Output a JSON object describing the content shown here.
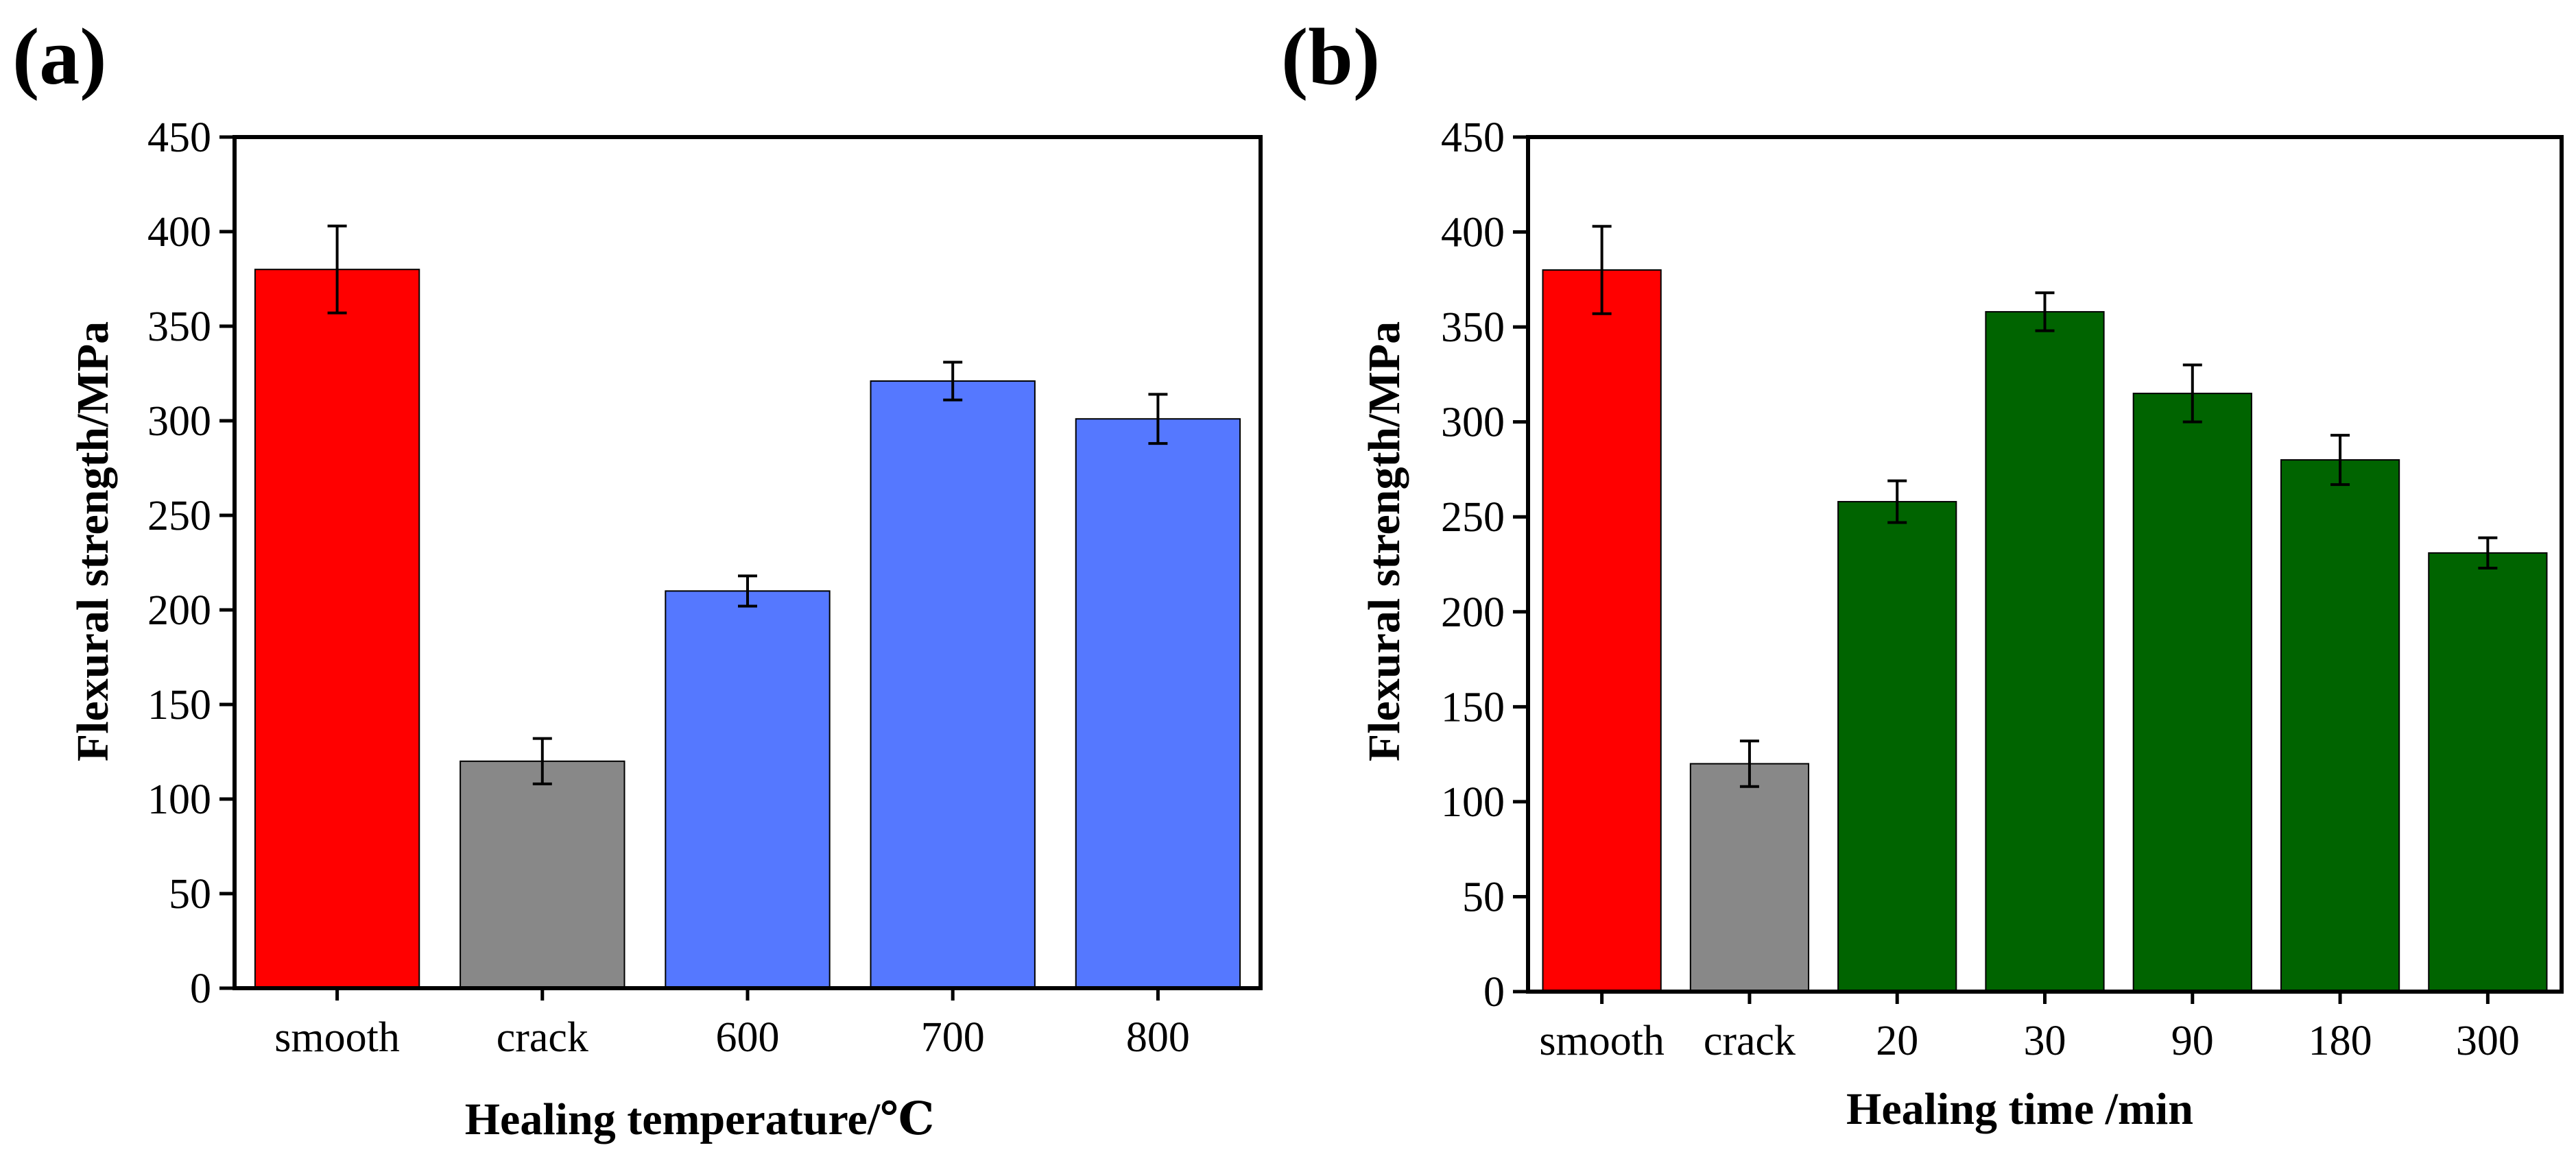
{
  "chart_data": [
    {
      "type": "bar",
      "panel_label": "(a)",
      "categories": [
        "smooth",
        "crack",
        "600",
        "700",
        "800"
      ],
      "values": [
        380,
        120,
        210,
        321,
        301
      ],
      "errors": [
        23,
        12,
        8,
        10,
        13
      ],
      "colors": [
        "#ff0000",
        "#888888",
        "#5578ff",
        "#5578ff",
        "#5578ff"
      ],
      "xlabel": "Healing temperature/℃",
      "ylabel": "Flexural strength/MPa",
      "ylim": [
        0,
        450
      ],
      "yticks": [
        "0",
        "50",
        "100",
        "150",
        "200",
        "250",
        "300",
        "350",
        "400",
        "450"
      ],
      "grid": false
    },
    {
      "type": "bar",
      "panel_label": "(b)",
      "categories": [
        "smooth",
        "crack",
        "20",
        "30",
        "90",
        "180",
        "300"
      ],
      "values": [
        380,
        120,
        258,
        358,
        315,
        280,
        231
      ],
      "errors": [
        23,
        12,
        11,
        10,
        15,
        13,
        8
      ],
      "colors": [
        "#ff0000",
        "#888888",
        "#006400",
        "#006400",
        "#006400",
        "#006400",
        "#006400"
      ],
      "xlabel": "Healing time /min",
      "ylabel": "Flexural strength/MPa",
      "ylim": [
        0,
        450
      ],
      "yticks": [
        "0",
        "50",
        "100",
        "150",
        "200",
        "250",
        "300",
        "350",
        "400",
        "450"
      ],
      "grid": false
    }
  ]
}
